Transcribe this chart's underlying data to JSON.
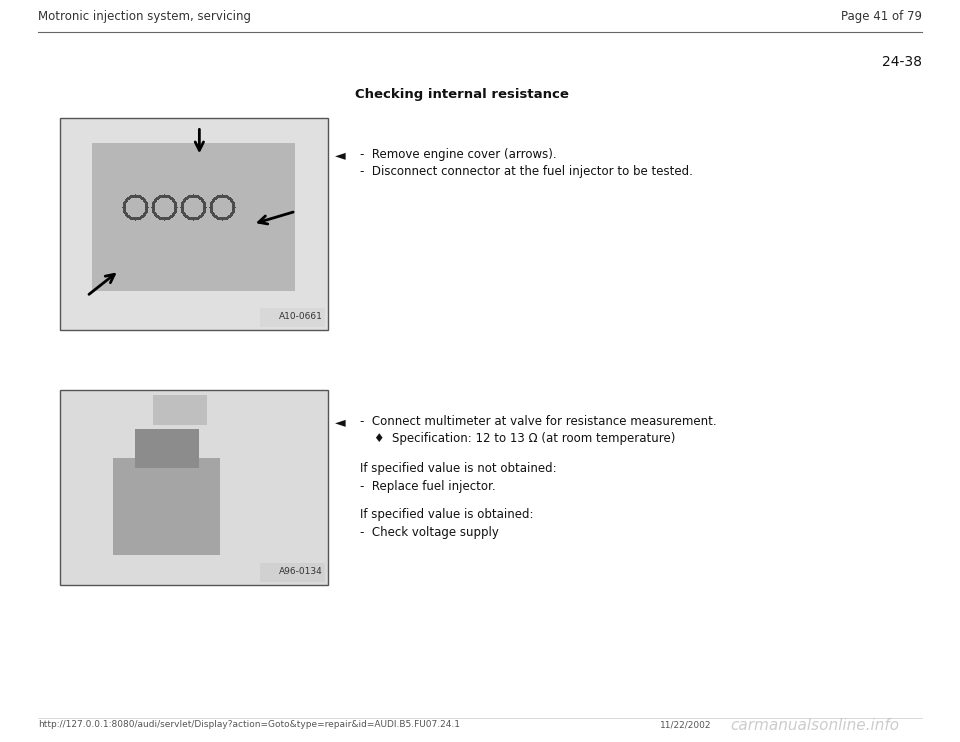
{
  "page_bg": "#ffffff",
  "header_left": "Motronic injection system, servicing",
  "header_right": "Page 41 of 79",
  "section_number": "24-38",
  "section_title": "Checking internal resistance",
  "bullet_arrow": "◄",
  "diamond": "♦",
  "step1_line1": "-  Remove engine cover (arrows).",
  "step1_line2": "-  Disconnect connector at the fuel injector to be tested.",
  "step2_line1": "-  Connect multimeter at valve for resistance measurement.",
  "specification": "♦  Specification: 12 to 13 Ω (at room temperature)",
  "if_not_obtained_label": "If specified value is not obtained:",
  "if_not_obtained_action": "-  Replace fuel injector.",
  "if_obtained_label": "If specified value is obtained:",
  "if_obtained_action": "-  Check voltage supply",
  "img1_label": "A10-0661",
  "img2_label": "A96-0134",
  "footer_url": "http://127.0.0.1:8080/audi/servlet/Display?action=Goto&type=repair&id=AUDI.B5.FU07.24.1",
  "footer_date": "11/22/2002",
  "footer_watermark": "carmanualsonline.info",
  "font_family": "DejaVu Sans",
  "header_fontsize": 8.5,
  "body_fontsize": 8.5,
  "title_fontsize": 9.5,
  "section_num_fontsize": 10,
  "footer_fontsize": 6.5,
  "watermark_fontsize": 11
}
